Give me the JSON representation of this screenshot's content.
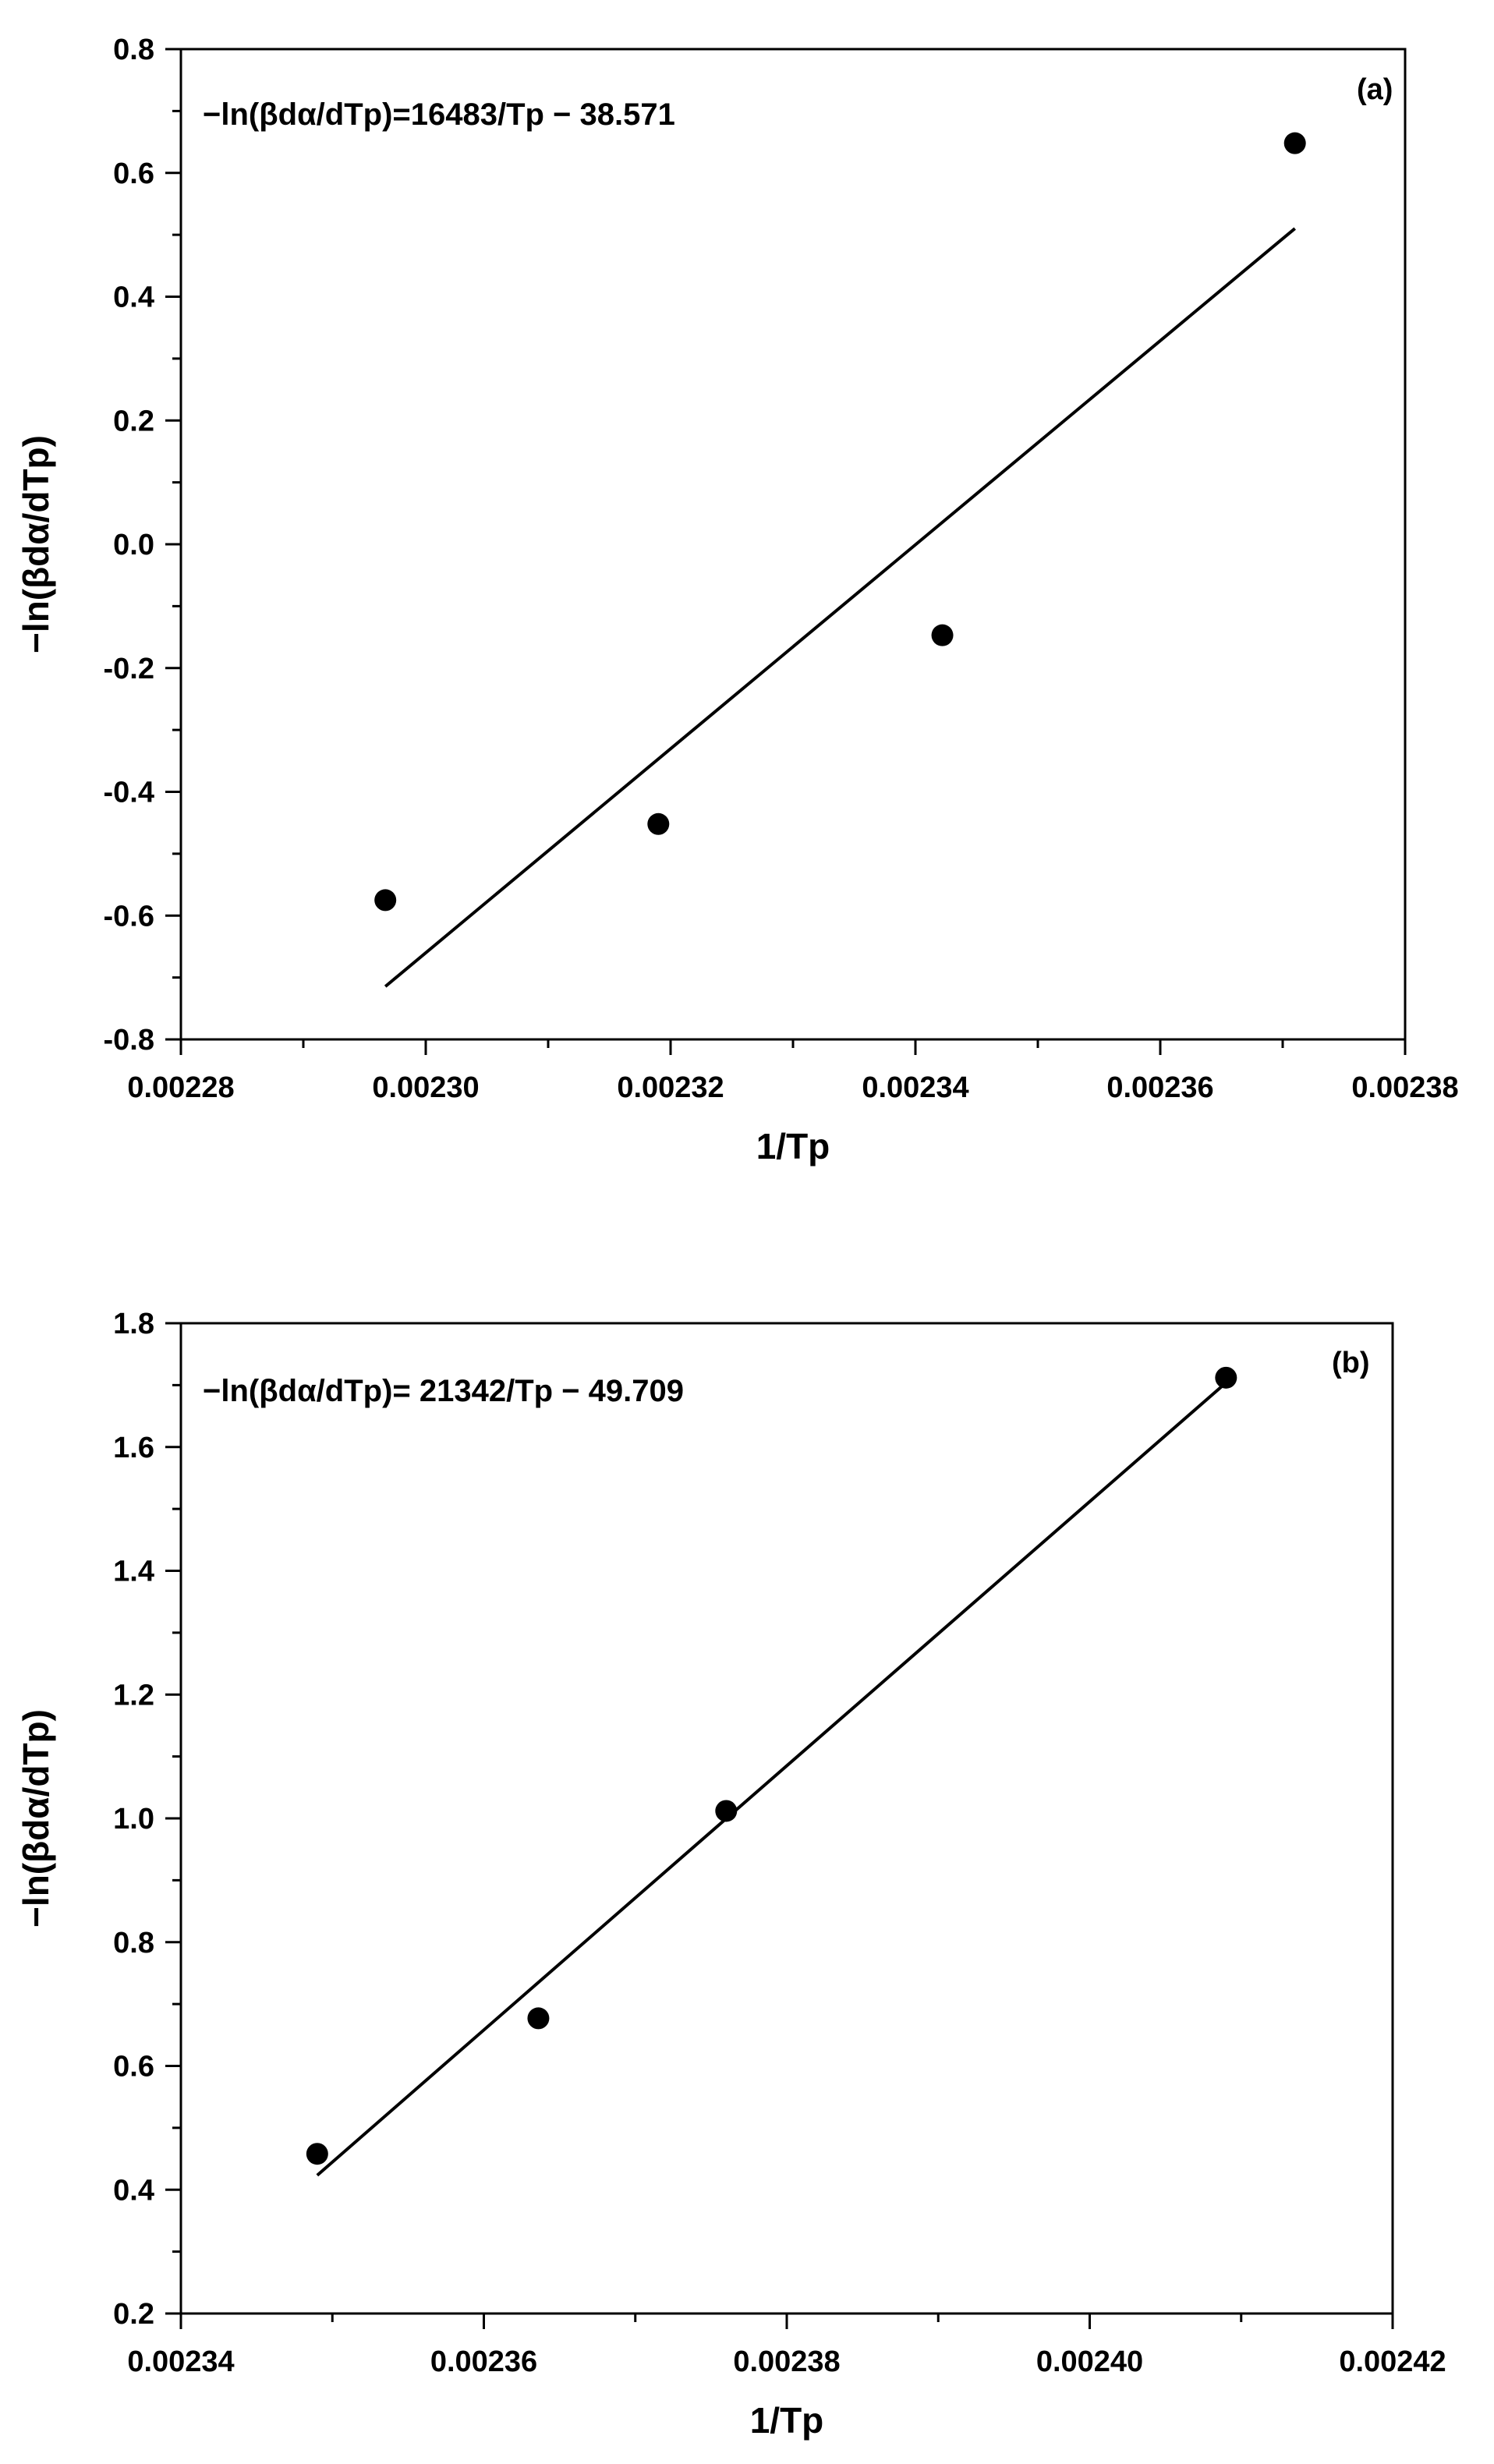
{
  "chart_data": [
    {
      "type": "scatter",
      "panel": "(a)",
      "annotation": "−ln(βdα/dTp)=16483/Tp − 38.571",
      "xlabel": "1/Tp",
      "ylabel": "−ln(βdα/dTp)",
      "xlim": [
        0.00228,
        0.00238
      ],
      "ylim": [
        -0.8,
        0.8
      ],
      "x_ticks": [
        "0.00228",
        "0.00230",
        "0.00232",
        "0.00234",
        "0.00236",
        "0.00238"
      ],
      "y_ticks": [
        "-0.8",
        "-0.6",
        "-0.4",
        "-0.2",
        "0.0",
        "0.2",
        "0.4",
        "0.6",
        "0.8"
      ],
      "x_tick_values": [
        0.00228,
        0.0023,
        0.00232,
        0.00234,
        0.00236,
        0.00238
      ],
      "y_tick_values": [
        -0.8,
        -0.6,
        -0.4,
        -0.2,
        0.0,
        0.2,
        0.4,
        0.6,
        0.8
      ],
      "points": [
        {
          "x": 0.0022967,
          "y": -0.575
        },
        {
          "x": 0.002319,
          "y": -0.452
        },
        {
          "x": 0.0023422,
          "y": -0.147
        },
        {
          "x": 0.002371,
          "y": 0.648
        }
      ],
      "fit": {
        "slope": 16483,
        "intercept": -38.571,
        "x_range": [
          0.0022967,
          0.002371
        ]
      },
      "grid": false,
      "legend": "none",
      "colors": {
        "marker": "#000000",
        "line": "#000000"
      }
    },
    {
      "type": "scatter",
      "panel": "(b)",
      "annotation": "−ln(βdα/dTp)= 21342/Tp − 49.709",
      "xlabel": "1/Tp",
      "ylabel": "−ln(βdα/dTp)",
      "xlim": [
        0.00234,
        0.00242
      ],
      "ylim": [
        0.2,
        1.8
      ],
      "x_ticks": [
        "0.00234",
        "0.00236",
        "0.00238",
        "0.00240",
        "0.00242"
      ],
      "y_ticks": [
        "0.2",
        "0.4",
        "0.6",
        "0.8",
        "1.0",
        "1.2",
        "1.4",
        "1.6",
        "1.8"
      ],
      "x_tick_values": [
        0.00234,
        0.00236,
        0.00238,
        0.0024,
        0.00242
      ],
      "y_tick_values": [
        0.2,
        0.4,
        0.6,
        0.8,
        1.0,
        1.2,
        1.4,
        1.6,
        1.8
      ],
      "points": [
        {
          "x": 0.002349,
          "y": 0.458
        },
        {
          "x": 0.0023636,
          "y": 0.677
        },
        {
          "x": 0.002376,
          "y": 1.012
        },
        {
          "x": 0.002409,
          "y": 1.712
        }
      ],
      "fit": {
        "slope": 21342,
        "intercept": -49.709,
        "x_range": [
          0.002349,
          0.002409
        ]
      },
      "grid": false,
      "legend": "none",
      "colors": {
        "marker": "#000000",
        "line": "#000000"
      }
    }
  ]
}
